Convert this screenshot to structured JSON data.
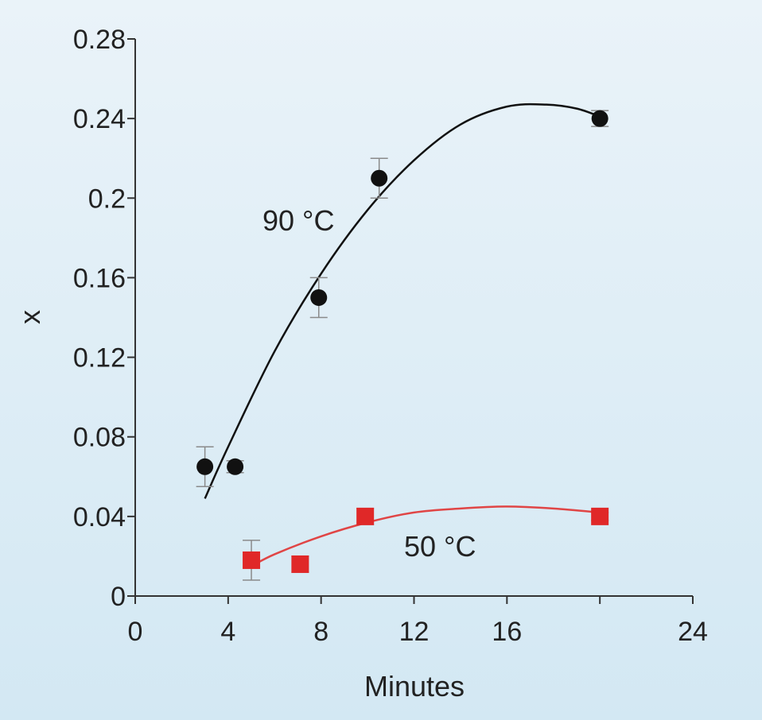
{
  "chart_data": {
    "type": "scatter",
    "xlabel": "Minutes",
    "ylabel": "x",
    "xlim": [
      0,
      24
    ],
    "ylim": [
      0,
      0.28
    ],
    "x_ticks": [
      "0",
      "4",
      "8",
      "12",
      "16",
      "24"
    ],
    "x_tick_values": [
      0,
      4,
      8,
      12,
      16,
      24
    ],
    "y_ticks": [
      "0",
      "0.04",
      "0.08",
      "0.12",
      "0.16",
      "0.2",
      "0.24",
      "0.28"
    ],
    "y_tick_values": [
      0,
      0.04,
      0.08,
      0.12,
      0.16,
      0.2,
      0.24,
      0.28
    ],
    "grid": false,
    "series": [
      {
        "name": "90 °C",
        "marker": "circle",
        "color": "#111111",
        "line_color": "#111111",
        "points": [
          {
            "x": 3.0,
            "y": 0.065,
            "err": 0.01
          },
          {
            "x": 4.3,
            "y": 0.065,
            "err": 0.003
          },
          {
            "x": 7.9,
            "y": 0.15,
            "err": 0.01
          },
          {
            "x": 10.5,
            "y": 0.21,
            "err": 0.01
          },
          {
            "x": 20.0,
            "y": 0.24,
            "err": 0.004
          }
        ],
        "fit": [
          [
            3.0,
            0.049
          ],
          [
            4.0,
            0.075
          ],
          [
            6.0,
            0.123
          ],
          [
            8.0,
            0.162
          ],
          [
            10.0,
            0.194
          ],
          [
            12.0,
            0.219
          ],
          [
            14.0,
            0.237
          ],
          [
            16.0,
            0.246
          ],
          [
            17.7,
            0.247
          ],
          [
            19.0,
            0.245
          ],
          [
            20.0,
            0.241
          ]
        ]
      },
      {
        "name": "50 °C",
        "marker": "square",
        "color": "#e02828",
        "line_color": "#e04545",
        "points": [
          {
            "x": 5.0,
            "y": 0.018,
            "err": 0.01
          },
          {
            "x": 7.1,
            "y": 0.016,
            "err": 0.004
          },
          {
            "x": 9.9,
            "y": 0.04,
            "err": 0.004
          },
          {
            "x": 20.0,
            "y": 0.04,
            "err": 0.002
          }
        ],
        "fit": [
          [
            5.0,
            0.015
          ],
          [
            6.0,
            0.021
          ],
          [
            8.0,
            0.03
          ],
          [
            10.0,
            0.037
          ],
          [
            12.0,
            0.042
          ],
          [
            14.0,
            0.044
          ],
          [
            16.0,
            0.045
          ],
          [
            18.0,
            0.044
          ],
          [
            20.0,
            0.042
          ]
        ]
      }
    ]
  }
}
